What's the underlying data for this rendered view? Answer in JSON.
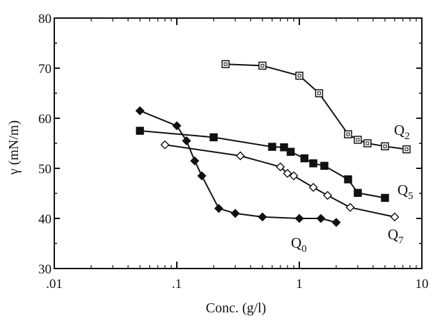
{
  "chart_data": {
    "type": "scatter",
    "x_scale": "log",
    "y_scale": "linear",
    "xlabel": "Conc. (g/l)",
    "ylabel": "γ (mN/m)",
    "xlim": [
      0.01,
      10
    ],
    "ylim": [
      30,
      80
    ],
    "x_ticks": [
      0.01,
      0.1,
      1,
      10
    ],
    "x_tick_labels": [
      ".01",
      ".1",
      "1",
      "10"
    ],
    "y_ticks": [
      30,
      40,
      50,
      60,
      70,
      80
    ],
    "y_tick_labels": [
      "30",
      "40",
      "50",
      "60",
      "70",
      "80"
    ],
    "grid": false,
    "series": [
      {
        "name": "Q2",
        "label_main": "Q",
        "label_sub": "2",
        "marker": "open-square",
        "x": [
          0.25,
          0.5,
          1.0,
          1.45,
          2.5,
          3.0,
          3.6,
          5.0,
          7.5
        ],
        "y": [
          70.8,
          70.5,
          68.5,
          65.0,
          56.8,
          55.7,
          55.0,
          54.4,
          53.8
        ]
      },
      {
        "name": "Q5",
        "label_main": "Q",
        "label_sub": "5",
        "marker": "filled-square",
        "x": [
          0.05,
          0.2,
          0.6,
          0.75,
          0.85,
          1.1,
          1.3,
          1.6,
          2.5,
          3.0,
          5.0
        ],
        "y": [
          57.5,
          56.2,
          54.3,
          54.2,
          53.3,
          52.0,
          51.0,
          50.5,
          47.8,
          45.1,
          44.1
        ]
      },
      {
        "name": "Q7",
        "label_main": "Q",
        "label_sub": "7",
        "marker": "open-diamond",
        "x": [
          0.08,
          0.33,
          0.7,
          0.8,
          0.9,
          1.3,
          1.7,
          2.6,
          6.0
        ],
        "y": [
          54.7,
          52.5,
          50.3,
          49.0,
          48.5,
          46.2,
          44.6,
          42.2,
          40.3
        ]
      },
      {
        "name": "Q0",
        "label_main": "Q",
        "label_sub": "0",
        "marker": "filled-diamond",
        "x": [
          0.05,
          0.1,
          0.12,
          0.14,
          0.16,
          0.22,
          0.3,
          0.5,
          1.0,
          1.5,
          2.0
        ],
        "y": [
          61.5,
          58.5,
          55.5,
          51.5,
          48.5,
          42.0,
          41.0,
          40.3,
          40.0,
          40.0,
          39.2
        ]
      }
    ]
  }
}
